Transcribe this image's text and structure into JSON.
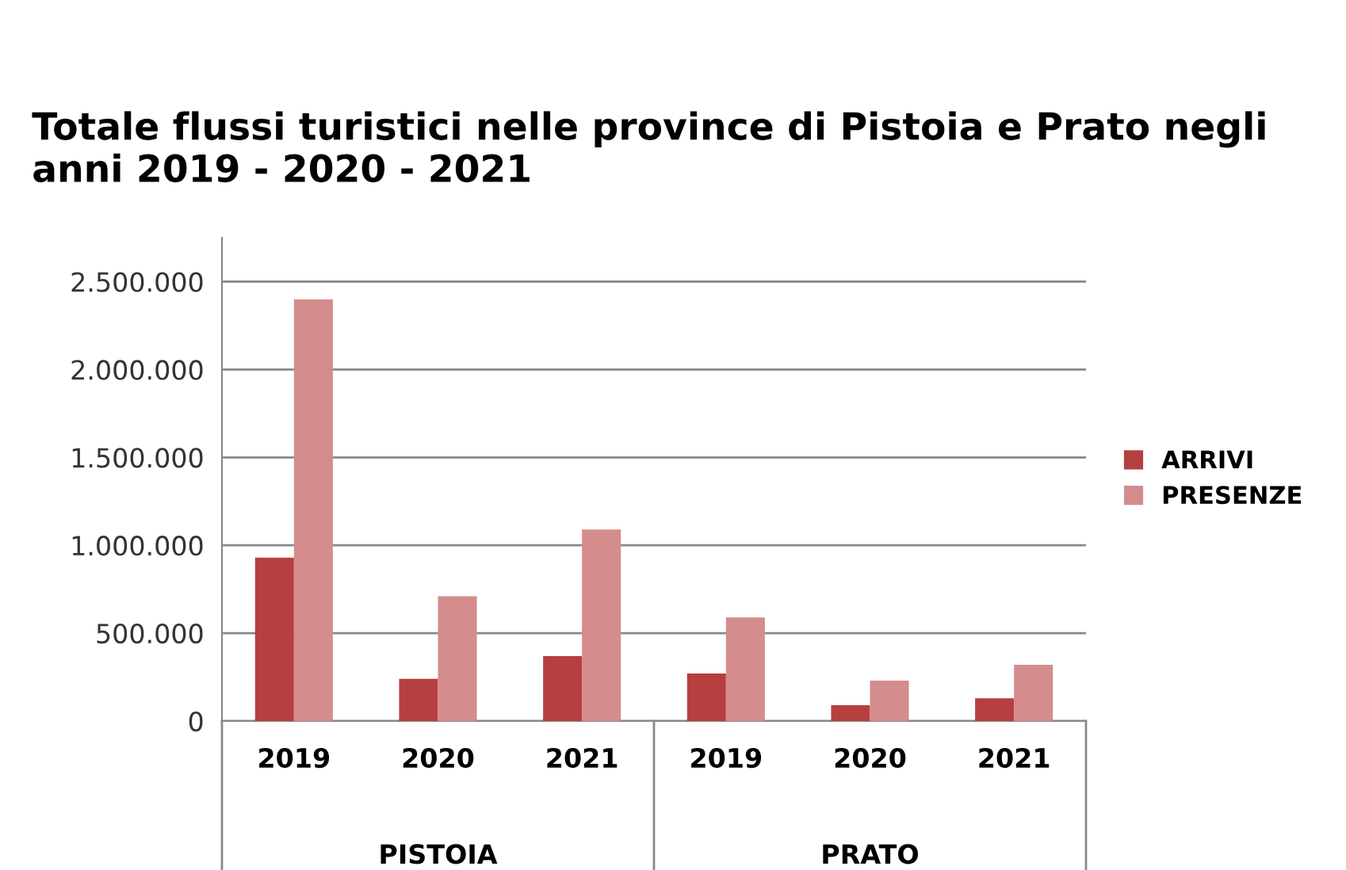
{
  "chart_data": {
    "type": "bar",
    "title": "Totale flussi turistici nelle province di Pistoia e Prato negli anni 2019 - 2020 - 2021",
    "categories": [
      "2019",
      "2020",
      "2021",
      "2019",
      "2020",
      "2021"
    ],
    "series": [
      {
        "name": "ARRIVI",
        "color": "#b5403f",
        "values": [
          930000,
          240000,
          370000,
          270000,
          90000,
          130000
        ]
      },
      {
        "name": "PRESENZE",
        "color": "#d48c8c",
        "values": [
          2400000,
          710000,
          1090000,
          590000,
          230000,
          320000
        ]
      }
    ],
    "ylim": [
      0,
      2750000
    ],
    "yticks": [
      0,
      {
        "value": 500000,
        "label": "500.000"
      },
      {
        "value": 1000000,
        "label": "1.000.000"
      },
      {
        "value": 1500000,
        "label": "1.500.000"
      },
      {
        "value": 2000000,
        "label": "2.000.000"
      },
      {
        "value": 2500000,
        "label": "2.500.000"
      }
    ],
    "grid": "y",
    "legend": "right",
    "annotations": [
      "PISTOIA",
      "PRATO"
    ]
  }
}
